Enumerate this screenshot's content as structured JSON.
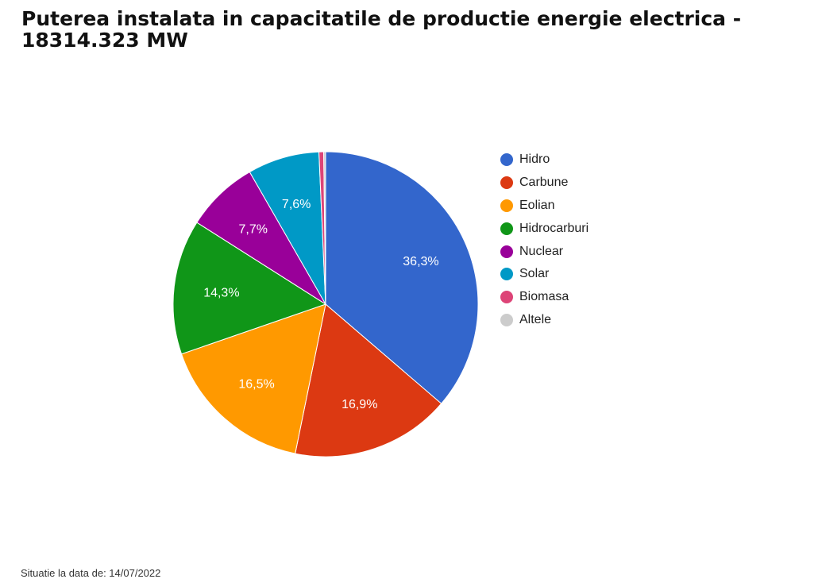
{
  "title": "Puterea instalata in capacitatile de productie energie electrica - 18314.323 MW",
  "footnote": "Situatie la data de: 14/07/2022",
  "chart_data": {
    "type": "pie",
    "title": "Puterea instalata in capacitatile de productie energie electrica - 18314.323 MW",
    "legend_position": "right",
    "start_angle": "top, clockwise",
    "slices": [
      {
        "name": "Hidro",
        "value": 36.3,
        "label": "36,3%",
        "color": "#3366cc"
      },
      {
        "name": "Carbune",
        "value": 16.9,
        "label": "16,9%",
        "color": "#dc3912"
      },
      {
        "name": "Eolian",
        "value": 16.5,
        "label": "16,5%",
        "color": "#ff9900"
      },
      {
        "name": "Hidrocarburi",
        "value": 14.3,
        "label": "14,3%",
        "color": "#109618"
      },
      {
        "name": "Nuclear",
        "value": 7.7,
        "label": "7,7%",
        "color": "#990099"
      },
      {
        "name": "Solar",
        "value": 7.6,
        "label": "7,6%",
        "color": "#0099c6"
      },
      {
        "name": "Biomasa",
        "value": 0.5,
        "label": "",
        "color": "#dd4477"
      },
      {
        "name": "Altele",
        "value": 0.2,
        "label": "",
        "color": "#cccccc"
      }
    ]
  }
}
